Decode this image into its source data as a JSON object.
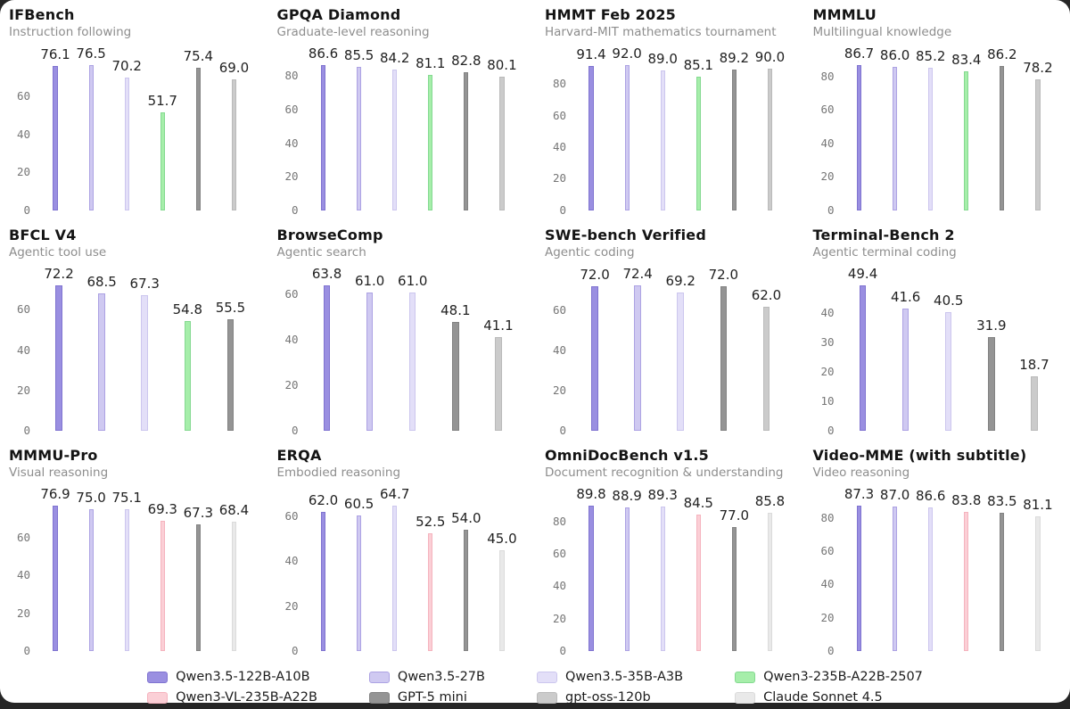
{
  "page": {
    "background": "#ffffff",
    "frame_color": "#262626"
  },
  "models": {
    "q122": {
      "label": "Qwen3.5-122B-A10B",
      "fill": "#9A8FE1",
      "stroke": "#7F73D0"
    },
    "q27": {
      "label": "Qwen3.5-27B",
      "fill": "#CFC9F1",
      "stroke": "#ACA2E3"
    },
    "q35": {
      "label": "Qwen3.5-35B-A3B",
      "fill": "#E3DFF8",
      "stroke": "#CCC6EE"
    },
    "q235": {
      "label": "Qwen3-235B-A22B-2507",
      "fill": "#A6EEAA",
      "stroke": "#84D990"
    },
    "qvl": {
      "label": "Qwen3-VL-235B-A22B",
      "fill": "#FBCFD6",
      "stroke": "#F5B3BE"
    },
    "gpt5": {
      "label": "GPT-5 mini",
      "fill": "#949494",
      "stroke": "#828282"
    },
    "oss": {
      "label": "gpt-oss-120b",
      "fill": "#CBCBCB",
      "stroke": "#BABABA"
    },
    "claude": {
      "label": "Claude Sonnet 4.5",
      "fill": "#E9E9E9",
      "stroke": "#DBDBDB"
    }
  },
  "chart_data": [
    {
      "type": "bar",
      "title": "IFBench",
      "subtitle": "Instruction following",
      "ticks": [
        0,
        20,
        40,
        60
      ],
      "grid": false,
      "series": [
        {
          "model": "q122",
          "value": 76.1
        },
        {
          "model": "q27",
          "value": 76.5
        },
        {
          "model": "q35",
          "value": 70.2
        },
        {
          "model": "q235",
          "value": 51.7
        },
        {
          "model": "gpt5",
          "value": 75.4
        },
        {
          "model": "oss",
          "value": 69.0
        }
      ]
    },
    {
      "type": "bar",
      "title": "GPQA Diamond",
      "subtitle": "Graduate-level reasoning",
      "ticks": [
        0,
        20,
        40,
        60,
        80
      ],
      "grid": false,
      "series": [
        {
          "model": "q122",
          "value": 86.6
        },
        {
          "model": "q27",
          "value": 85.5
        },
        {
          "model": "q35",
          "value": 84.2
        },
        {
          "model": "q235",
          "value": 81.1
        },
        {
          "model": "gpt5",
          "value": 82.8
        },
        {
          "model": "oss",
          "value": 80.1
        }
      ]
    },
    {
      "type": "bar",
      "title": "HMMT Feb 2025",
      "subtitle": "Harvard-MIT mathematics tournament",
      "ticks": [
        0,
        20,
        40,
        60,
        80
      ],
      "grid": false,
      "series": [
        {
          "model": "q122",
          "value": 91.4
        },
        {
          "model": "q27",
          "value": 92.0
        },
        {
          "model": "q35",
          "value": 89.0
        },
        {
          "model": "q235",
          "value": 85.1
        },
        {
          "model": "gpt5",
          "value": 89.2
        },
        {
          "model": "oss",
          "value": 90.0
        }
      ]
    },
    {
      "type": "bar",
      "title": "MMMLU",
      "subtitle": "Multilingual knowledge",
      "ticks": [
        0,
        20,
        40,
        60,
        80
      ],
      "grid": false,
      "series": [
        {
          "model": "q122",
          "value": 86.7
        },
        {
          "model": "q27",
          "value": 86.0
        },
        {
          "model": "q35",
          "value": 85.2
        },
        {
          "model": "q235",
          "value": 83.4
        },
        {
          "model": "gpt5",
          "value": 86.2
        },
        {
          "model": "oss",
          "value": 78.2
        }
      ]
    },
    {
      "type": "bar",
      "title": "BFCL V4",
      "subtitle": "Agentic tool use",
      "ticks": [
        0,
        20,
        40,
        60
      ],
      "grid": false,
      "series": [
        {
          "model": "q122",
          "value": 72.2
        },
        {
          "model": "q27",
          "value": 68.5
        },
        {
          "model": "q35",
          "value": 67.3
        },
        {
          "model": "q235",
          "value": 54.8
        },
        {
          "model": "gpt5",
          "value": 55.5
        }
      ]
    },
    {
      "type": "bar",
      "title": "BrowseComp",
      "subtitle": "Agentic search",
      "ticks": [
        0,
        20,
        40,
        60
      ],
      "grid": false,
      "series": [
        {
          "model": "q122",
          "value": 63.8
        },
        {
          "model": "q27",
          "value": 61.0
        },
        {
          "model": "q35",
          "value": 61.0
        },
        {
          "model": "gpt5",
          "value": 48.1
        },
        {
          "model": "oss",
          "value": 41.1
        }
      ]
    },
    {
      "type": "bar",
      "title": "SWE-bench Verified",
      "subtitle": "Agentic coding",
      "ticks": [
        0,
        20,
        40,
        60
      ],
      "grid": false,
      "series": [
        {
          "model": "q122",
          "value": 72.0
        },
        {
          "model": "q27",
          "value": 72.4
        },
        {
          "model": "q35",
          "value": 69.2
        },
        {
          "model": "gpt5",
          "value": 72.0
        },
        {
          "model": "oss",
          "value": 62.0
        }
      ]
    },
    {
      "type": "bar",
      "title": "Terminal-Bench 2",
      "subtitle": "Agentic terminal coding",
      "ticks": [
        0,
        10,
        20,
        30,
        40
      ],
      "grid": false,
      "series": [
        {
          "model": "q122",
          "value": 49.4
        },
        {
          "model": "q27",
          "value": 41.6
        },
        {
          "model": "q35",
          "value": 40.5
        },
        {
          "model": "gpt5",
          "value": 31.9
        },
        {
          "model": "oss",
          "value": 18.7
        }
      ]
    },
    {
      "type": "bar",
      "title": "MMMU-Pro",
      "subtitle": "Visual reasoning",
      "ticks": [
        0,
        20,
        40,
        60
      ],
      "grid": false,
      "series": [
        {
          "model": "q122",
          "value": 76.9
        },
        {
          "model": "q27",
          "value": 75.0
        },
        {
          "model": "q35",
          "value": 75.1
        },
        {
          "model": "qvl",
          "value": 69.3
        },
        {
          "model": "gpt5",
          "value": 67.3
        },
        {
          "model": "claude",
          "value": 68.4
        }
      ]
    },
    {
      "type": "bar",
      "title": "ERQA",
      "subtitle": "Embodied reasoning",
      "ticks": [
        0,
        20,
        40,
        60
      ],
      "grid": false,
      "series": [
        {
          "model": "q122",
          "value": 62.0
        },
        {
          "model": "q27",
          "value": 60.5
        },
        {
          "model": "q35",
          "value": 64.7
        },
        {
          "model": "qvl",
          "value": 52.5
        },
        {
          "model": "gpt5",
          "value": 54.0
        },
        {
          "model": "claude",
          "value": 45.0
        }
      ]
    },
    {
      "type": "bar",
      "title": "OmniDocBench v1.5",
      "subtitle": "Document recognition & understanding",
      "ticks": [
        0,
        20,
        40,
        60,
        80
      ],
      "grid": false,
      "series": [
        {
          "model": "q122",
          "value": 89.8
        },
        {
          "model": "q27",
          "value": 88.9
        },
        {
          "model": "q35",
          "value": 89.3
        },
        {
          "model": "qvl",
          "value": 84.5
        },
        {
          "model": "gpt5",
          "value": 77.0
        },
        {
          "model": "claude",
          "value": 85.8
        }
      ]
    },
    {
      "type": "bar",
      "title": "Video-MME (with subtitle)",
      "subtitle": "Video reasoning",
      "ticks": [
        0,
        20,
        40,
        60,
        80
      ],
      "grid": false,
      "series": [
        {
          "model": "q122",
          "value": 87.3
        },
        {
          "model": "q27",
          "value": 87.0
        },
        {
          "model": "q35",
          "value": 86.6
        },
        {
          "model": "qvl",
          "value": 83.8
        },
        {
          "model": "gpt5",
          "value": 83.5
        },
        {
          "model": "claude",
          "value": 81.1
        }
      ]
    }
  ],
  "legend": {
    "rows": [
      [
        "q122",
        "q27",
        "q35",
        "q235"
      ],
      [
        "qvl",
        "gpt5",
        "oss",
        "claude"
      ]
    ]
  }
}
